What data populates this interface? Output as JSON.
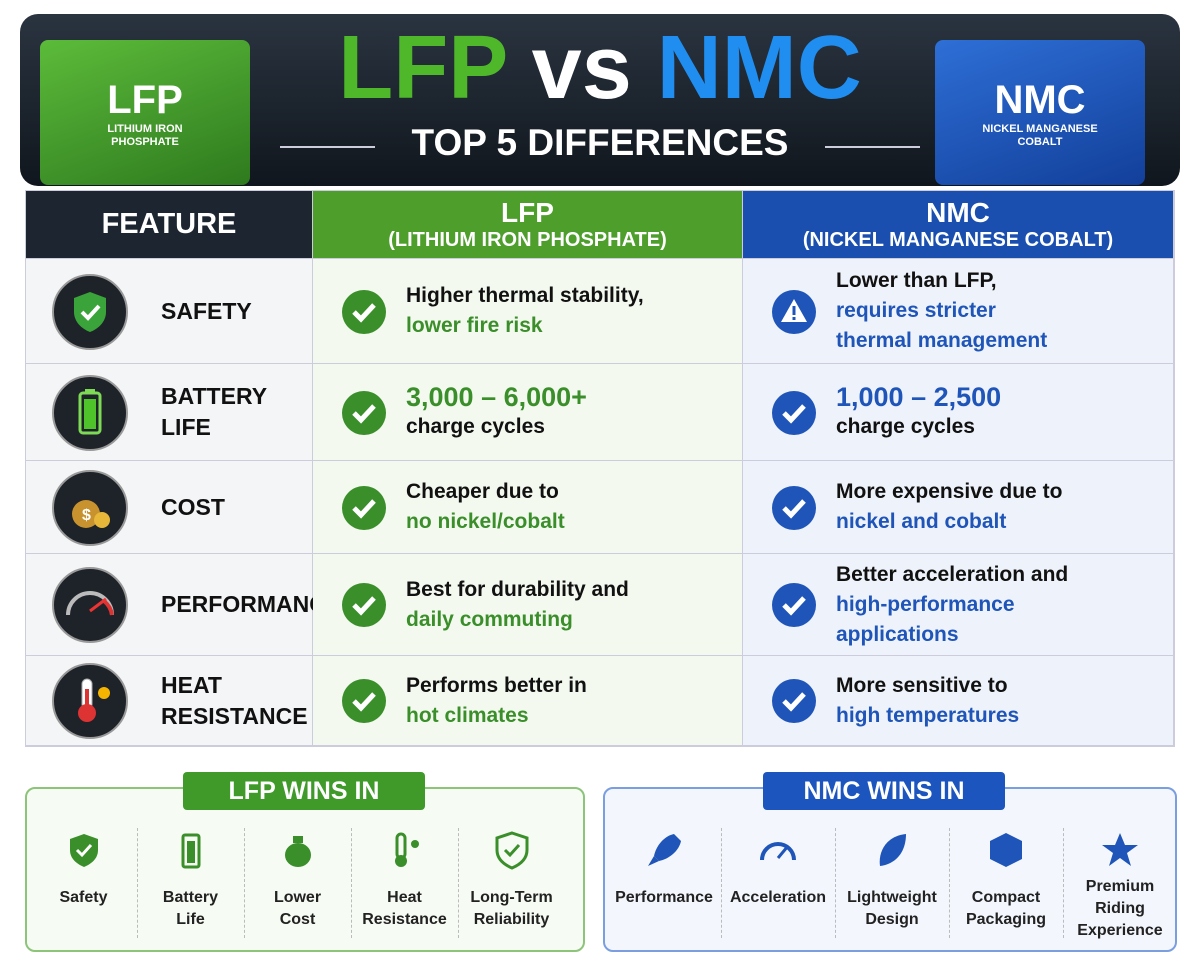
{
  "header": {
    "title_left": "LFP",
    "title_mid": "vs",
    "title_right": "NMC",
    "subtitle": "TOP 5 DIFFERENCES",
    "left_battery": {
      "label": "LFP",
      "sublabel": [
        "LITHIUM IRON",
        "PHOSPHATE"
      ]
    },
    "right_battery": {
      "label": "NMC",
      "sublabel": [
        "NICKEL MANGANESE",
        "COBALT"
      ]
    }
  },
  "table": {
    "columns": [
      {
        "title": "FEATURE"
      },
      {
        "title": "LFP",
        "subtitle": "(LITHIUM IRON PHOSPHATE)"
      },
      {
        "title": "NMC",
        "subtitle": "(NICKEL MANGANESE COBALT)"
      }
    ],
    "rows": [
      {
        "feature": [
          "SAFETY"
        ],
        "lfp": [
          "Higher thermal stability,",
          "lower fire risk"
        ],
        "nmc": [
          "Lower than LFP,",
          "requires stricter",
          "thermal management"
        ]
      },
      {
        "feature": [
          "BATTERY",
          "LIFE"
        ],
        "lfp": [
          "3,000 – 6,000+",
          "charge cycles"
        ],
        "nmc": [
          "1,000 – 2,500",
          "charge cycles"
        ]
      },
      {
        "feature": [
          "COST"
        ],
        "lfp": [
          "Cheaper due to",
          "no nickel/cobalt"
        ],
        "nmc": [
          "More expensive due to",
          "nickel and cobalt"
        ]
      },
      {
        "feature": [
          "PERFORMANCE"
        ],
        "lfp": [
          "Best for durability and",
          "daily commuting"
        ],
        "nmc": [
          "Better acceleration and",
          "high-performance",
          "applications"
        ]
      },
      {
        "feature": [
          "HEAT",
          "RESISTANCE"
        ],
        "lfp": [
          "Performs better in",
          "hot climates"
        ],
        "nmc": [
          "More sensitive to",
          "high temperatures"
        ]
      }
    ]
  },
  "lfp_wins": {
    "title": "LFP WINS IN",
    "items": [
      [
        "Safety"
      ],
      [
        "Battery",
        "Life"
      ],
      [
        "Lower",
        "Cost"
      ],
      [
        "Heat",
        "Resistance"
      ],
      [
        "Long-Term",
        "Reliability"
      ]
    ]
  },
  "nmc_wins": {
    "title": "NMC WINS IN",
    "items": [
      [
        "Performance"
      ],
      [
        "Acceleration"
      ],
      [
        "Lightweight",
        "Design"
      ],
      [
        "Compact",
        "Packaging"
      ],
      [
        "Premium",
        "Riding",
        "Experience"
      ]
    ]
  }
}
